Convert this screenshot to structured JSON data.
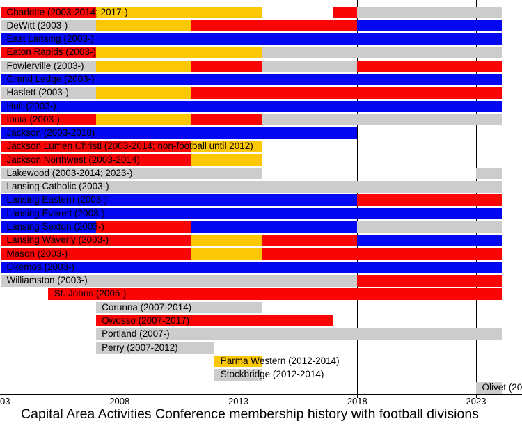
{
  "chart_data": {
    "type": "timeline-bar",
    "title": "Capital Area Activities Conference membership history with football divisions",
    "x_axis": {
      "range_years": [
        2003,
        2024.1
      ],
      "gridlines": true,
      "ticks": [
        {
          "label": "03",
          "year": 2003,
          "clipped_left": true
        },
        {
          "label": "2008",
          "year": 2008
        },
        {
          "label": "2013",
          "year": 2013
        },
        {
          "label": "2018",
          "year": 2018
        },
        {
          "label": "2023",
          "year": 2023
        }
      ]
    },
    "division_colors": {
      "red": "#fa0505",
      "yellow": "#fcc705",
      "blue": "#0308f0",
      "gray": "#cccccc"
    },
    "rows": [
      {
        "label": "Charlotte (2003-2014; 2017-)",
        "segments": [
          {
            "from": 2003,
            "to": 2007,
            "division": "red"
          },
          {
            "from": 2007,
            "to": 2014,
            "division": "yellow"
          },
          {
            "from": 2017,
            "to": 2018,
            "division": "red"
          },
          {
            "from": 2018,
            "to": null,
            "division": "gray"
          }
        ]
      },
      {
        "label": "DeWitt (2003-)",
        "segments": [
          {
            "from": 2003,
            "to": 2007,
            "division": "gray"
          },
          {
            "from": 2007,
            "to": 2011,
            "division": "yellow"
          },
          {
            "from": 2011,
            "to": 2018,
            "division": "red"
          },
          {
            "from": 2018,
            "to": null,
            "division": "blue"
          }
        ]
      },
      {
        "label": "East Lansing (2003-)",
        "segments": [
          {
            "from": 2003,
            "to": null,
            "division": "blue"
          }
        ]
      },
      {
        "label": "Eaton Rapids (2003-)",
        "segments": [
          {
            "from": 2003,
            "to": 2007,
            "division": "red"
          },
          {
            "from": 2007,
            "to": 2014,
            "division": "yellow"
          },
          {
            "from": 2014,
            "to": null,
            "division": "gray"
          }
        ]
      },
      {
        "label": "Fowlerville (2003-)",
        "segments": [
          {
            "from": 2003,
            "to": 2007,
            "division": "gray"
          },
          {
            "from": 2007,
            "to": 2011,
            "division": "yellow"
          },
          {
            "from": 2011,
            "to": 2014,
            "division": "red"
          },
          {
            "from": 2014,
            "to": 2018,
            "division": "gray"
          },
          {
            "from": 2018,
            "to": null,
            "division": "red"
          }
        ]
      },
      {
        "label": "Grand Ledge (2003-)",
        "segments": [
          {
            "from": 2003,
            "to": null,
            "division": "blue"
          }
        ]
      },
      {
        "label": "Haslett (2003-)",
        "segments": [
          {
            "from": 2003,
            "to": 2007,
            "division": "gray"
          },
          {
            "from": 2007,
            "to": 2011,
            "division": "yellow"
          },
          {
            "from": 2011,
            "to": null,
            "division": "red"
          }
        ]
      },
      {
        "label": "Holt (2003-)",
        "segments": [
          {
            "from": 2003,
            "to": null,
            "division": "blue"
          }
        ]
      },
      {
        "label": "Ionia (2003-)",
        "segments": [
          {
            "from": 2003,
            "to": 2007,
            "division": "red"
          },
          {
            "from": 2007,
            "to": 2011,
            "division": "yellow"
          },
          {
            "from": 2011,
            "to": 2014,
            "division": "red"
          },
          {
            "from": 2014,
            "to": null,
            "division": "gray"
          }
        ]
      },
      {
        "label": "Jackson (2003-2018)",
        "segments": [
          {
            "from": 2003,
            "to": 2018,
            "division": "blue"
          }
        ]
      },
      {
        "label": "Jackson Lumen Christi (2003-2014; non-football until 2012)",
        "segments": [
          {
            "from": 2003,
            "to": 2011,
            "division": "red"
          },
          {
            "from": 2011,
            "to": 2014,
            "division": "yellow"
          }
        ]
      },
      {
        "label": "Jackson Northwest (2003-2014)",
        "segments": [
          {
            "from": 2003,
            "to": 2011,
            "division": "red"
          },
          {
            "from": 2011,
            "to": 2014,
            "division": "yellow"
          }
        ]
      },
      {
        "label": "Lakewood (2003-2014; 2023-)",
        "segments": [
          {
            "from": 2003,
            "to": 2014,
            "division": "gray"
          },
          {
            "from": 2023,
            "to": null,
            "division": "gray"
          }
        ]
      },
      {
        "label": "Lansing Catholic (2003-)",
        "segments": [
          {
            "from": 2003,
            "to": null,
            "division": "gray"
          }
        ]
      },
      {
        "label": "Lansing Eastern (2003-)",
        "segments": [
          {
            "from": 2003,
            "to": 2018,
            "division": "blue"
          },
          {
            "from": 2018,
            "to": null,
            "division": "red"
          }
        ]
      },
      {
        "label": "Lansing Everett (2003-)",
        "segments": [
          {
            "from": 2003,
            "to": null,
            "division": "blue"
          }
        ]
      },
      {
        "label": "Lansing Sexton (2003-)",
        "segments": [
          {
            "from": 2003,
            "to": 2007,
            "division": "blue"
          },
          {
            "from": 2007,
            "to": 2011,
            "division": "red"
          },
          {
            "from": 2011,
            "to": 2018,
            "division": "blue"
          },
          {
            "from": 2018,
            "to": null,
            "division": "gray"
          }
        ]
      },
      {
        "label": "Lansing Waverly (2003-)",
        "segments": [
          {
            "from": 2003,
            "to": 2011,
            "division": "red"
          },
          {
            "from": 2011,
            "to": 2014,
            "division": "yellow"
          },
          {
            "from": 2014,
            "to": 2018,
            "division": "red"
          },
          {
            "from": 2018,
            "to": null,
            "division": "blue"
          }
        ]
      },
      {
        "label": "Mason (2003-)",
        "segments": [
          {
            "from": 2003,
            "to": 2011,
            "division": "red"
          },
          {
            "from": 2011,
            "to": 2014,
            "division": "yellow"
          },
          {
            "from": 2014,
            "to": null,
            "division": "red"
          }
        ]
      },
      {
        "label": "Okemos (2003-)",
        "segments": [
          {
            "from": 2003,
            "to": null,
            "division": "blue"
          }
        ]
      },
      {
        "label": "Williamston (2003-)",
        "segments": [
          {
            "from": 2003,
            "to": 2018,
            "division": "gray"
          },
          {
            "from": 2018,
            "to": null,
            "division": "red"
          }
        ]
      },
      {
        "label": "St. Johns (2005-)",
        "segments": [
          {
            "from": 2005,
            "to": null,
            "division": "red"
          }
        ]
      },
      {
        "label": "Corunna (2007-2014)",
        "segments": [
          {
            "from": 2007,
            "to": 2014,
            "division": "gray"
          }
        ]
      },
      {
        "label": "Owosso (2007-2017)",
        "segments": [
          {
            "from": 2007,
            "to": 2017,
            "division": "red"
          }
        ]
      },
      {
        "label": "Portland (2007-)",
        "segments": [
          {
            "from": 2007,
            "to": null,
            "division": "gray"
          }
        ]
      },
      {
        "label": "Perry (2007-2012)",
        "segments": [
          {
            "from": 2007,
            "to": 2012,
            "division": "gray"
          }
        ]
      },
      {
        "label": "Parma Western (2012-2014)",
        "segments": [
          {
            "from": 2012,
            "to": 2014,
            "division": "yellow"
          }
        ]
      },
      {
        "label": "Stockbridge (2012-2014)",
        "segments": [
          {
            "from": 2012,
            "to": 2014,
            "division": "gray"
          }
        ]
      },
      {
        "label": "Olivet (20",
        "segments": [
          {
            "from": 2023,
            "to": null,
            "division": "gray"
          }
        ]
      }
    ]
  }
}
